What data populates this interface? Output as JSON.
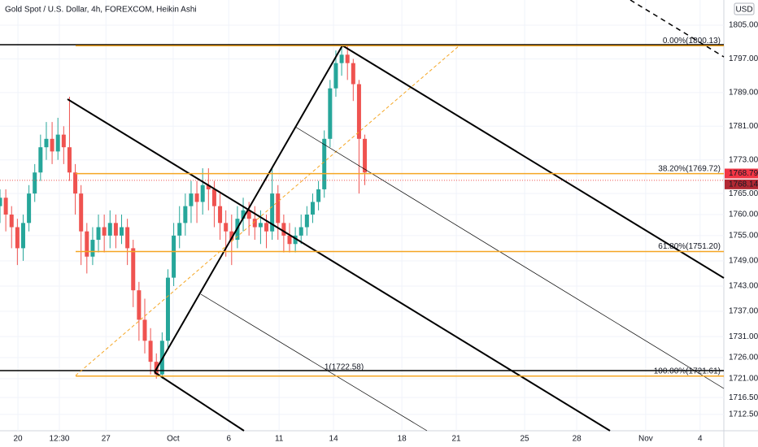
{
  "chart_data": {
    "type": "candlestick",
    "title": "Gold Spot / U.S. Dollar, 4h, FOREXCOM, Heikin Ashi",
    "currency": "USD",
    "up_color": "#26a69a",
    "down_color": "#ef5350",
    "fib_color": "#f5a623",
    "open": [
      1762,
      1764,
      1760,
      1757,
      1752,
      1758,
      1765,
      1770,
      1776,
      1778,
      1775,
      1779,
      1776,
      1770,
      1765,
      1756,
      1750,
      1754,
      1757,
      1755,
      1758,
      1755,
      1757,
      1752,
      1742,
      1735,
      1730,
      1725,
      1722,
      1730,
      1745,
      1755,
      1758,
      1762,
      1765,
      1763,
      1767,
      1766,
      1762,
      1758,
      1756,
      1754,
      1759,
      1761,
      1759,
      1757,
      1758,
      1756,
      1765,
      1758,
      1755,
      1753,
      1755,
      1757,
      1760,
      1763,
      1766,
      1778,
      1790,
      1796,
      1798,
      1796,
      1791,
      1778
    ],
    "high": [
      1766,
      1766,
      1762,
      1759,
      1760,
      1767,
      1772,
      1779,
      1782,
      1782,
      1783,
      1781,
      1788,
      1772,
      1767,
      1758,
      1757,
      1760,
      1760,
      1761,
      1760,
      1760,
      1759,
      1754,
      1744,
      1740,
      1733,
      1727,
      1732,
      1747,
      1758,
      1762,
      1765,
      1768,
      1768,
      1771,
      1771,
      1768,
      1765,
      1761,
      1760,
      1762,
      1764,
      1763,
      1762,
      1761,
      1760,
      1771,
      1767,
      1760,
      1758,
      1757,
      1760,
      1762,
      1765,
      1768,
      1780,
      1792,
      1799,
      1800,
      1800,
      1797,
      1792,
      1779
    ],
    "low": [
      1758,
      1756,
      1752,
      1748,
      1749,
      1756,
      1763,
      1768,
      1773,
      1772,
      1773,
      1772,
      1768,
      1760,
      1748,
      1746,
      1748,
      1751,
      1751,
      1752,
      1752,
      1753,
      1748,
      1738,
      1730,
      1727,
      1722,
      1721,
      1721,
      1728,
      1743,
      1752,
      1755,
      1758,
      1758,
      1760,
      1761,
      1757,
      1754,
      1750,
      1748,
      1752,
      1756,
      1755,
      1754,
      1753,
      1752,
      1754,
      1754,
      1751,
      1751,
      1751,
      1753,
      1755,
      1758,
      1761,
      1764,
      1776,
      1788,
      1793,
      1792,
      1787,
      1765,
      1767
    ],
    "close": [
      1764,
      1760,
      1757,
      1752,
      1758,
      1765,
      1770,
      1776,
      1778,
      1775,
      1779,
      1776,
      1770,
      1765,
      1756,
      1750,
      1754,
      1757,
      1755,
      1758,
      1755,
      1757,
      1752,
      1742,
      1735,
      1730,
      1725,
      1722,
      1730,
      1745,
      1755,
      1758,
      1762,
      1765,
      1763,
      1767,
      1766,
      1762,
      1758,
      1756,
      1754,
      1759,
      1761,
      1759,
      1757,
      1758,
      1756,
      1765,
      1758,
      1755,
      1753,
      1755,
      1757,
      1760,
      1763,
      1766,
      1778,
      1790,
      1796,
      1798,
      1796,
      1791,
      1778,
      1770
    ],
    "xlim": [
      0,
      125
    ],
    "xticks": [
      {
        "value": 3.1,
        "label": "20"
      },
      {
        "value": 10.25,
        "label": "12:30"
      },
      {
        "value": 18.3,
        "label": "27"
      },
      {
        "value": 29.9,
        "label": "Oct"
      },
      {
        "value": 39.5,
        "label": "6"
      },
      {
        "value": 48.2,
        "label": "11"
      },
      {
        "value": 57.6,
        "label": "14"
      },
      {
        "value": 69.4,
        "label": "18"
      },
      {
        "value": 78.8,
        "label": "21"
      },
      {
        "value": 90.6,
        "label": "25"
      },
      {
        "value": 99.6,
        "label": "28"
      },
      {
        "value": 111.5,
        "label": "Nov"
      },
      {
        "value": 120.9,
        "label": "4"
      }
    ],
    "ylim": [
      1709,
      1811
    ],
    "yticks": [
      {
        "value": 1805,
        "label": "1805.00"
      },
      {
        "value": 1797,
        "label": "1797.00"
      },
      {
        "value": 1789,
        "label": "1789.00"
      },
      {
        "value": 1781,
        "label": "1781.00"
      },
      {
        "value": 1773,
        "label": "1773.00"
      },
      {
        "value": 1765,
        "label": "1765.00"
      },
      {
        "value": 1760,
        "label": "1760.00"
      },
      {
        "value": 1755,
        "label": "1755.00"
      },
      {
        "value": 1749,
        "label": "1749.00"
      },
      {
        "value": 1743,
        "label": "1743.00"
      },
      {
        "value": 1737,
        "label": "1737.00"
      },
      {
        "value": 1731,
        "label": "1731.00"
      },
      {
        "value": 1726,
        "label": "1726.00"
      },
      {
        "value": 1721,
        "label": "1721.00"
      },
      {
        "value": 1716.5,
        "label": "1716.50"
      },
      {
        "value": 1712.5,
        "label": "1712.50"
      }
    ],
    "fib_levels": [
      {
        "value": 1800.13,
        "label": "0.00%(1800.13)"
      },
      {
        "value": 1769.72,
        "label": "38.20%(1769.72)"
      },
      {
        "value": 1751.2,
        "label": "61.80%(1751.20)"
      },
      {
        "value": 1721.61,
        "label": "100.00%(1721.61)"
      }
    ],
    "pitchfork_level": {
      "value": 1722.58,
      "label": "1(1722.58)"
    },
    "last_prices": [
      1768.79,
      1768.14
    ]
  }
}
